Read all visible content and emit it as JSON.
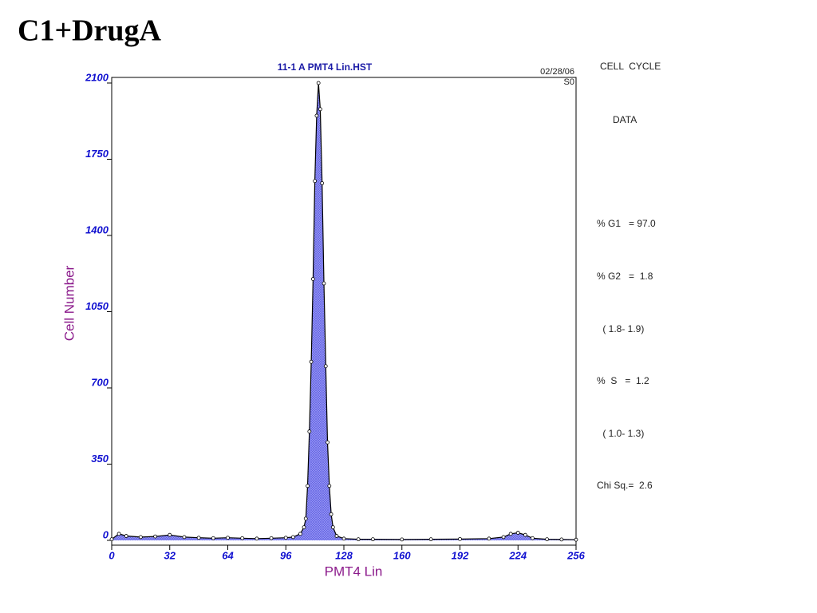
{
  "title": "C1+DrugA",
  "chart_data": {
    "type": "line",
    "title": "11-1 A PMT4 Lin.HST",
    "annotations": [
      "02/28/06",
      "S0"
    ],
    "x_label": "PMT4 Lin",
    "y_label": "Cell Number",
    "x": [
      0,
      4,
      8,
      16,
      24,
      32,
      40,
      48,
      56,
      64,
      72,
      80,
      88,
      96,
      100,
      104,
      106,
      107,
      108,
      109,
      110,
      111,
      112,
      113,
      114,
      115,
      116,
      117,
      118,
      119,
      120,
      121,
      122,
      124,
      128,
      136,
      144,
      160,
      176,
      192,
      208,
      216,
      220,
      224,
      228,
      232,
      240,
      248,
      256
    ],
    "values": [
      5,
      30,
      20,
      15,
      18,
      25,
      15,
      12,
      10,
      12,
      10,
      8,
      10,
      12,
      15,
      30,
      60,
      100,
      250,
      500,
      820,
      1200,
      1650,
      1950,
      2100,
      1980,
      1640,
      1180,
      800,
      450,
      250,
      120,
      60,
      20,
      8,
      5,
      5,
      4,
      5,
      6,
      8,
      15,
      30,
      35,
      25,
      10,
      5,
      4,
      3
    ],
    "color": "#000000",
    "fill": "#7b7bf0",
    "xlim": [
      0,
      256
    ],
    "ylim": [
      0,
      2100
    ],
    "xticks": [
      0,
      32,
      64,
      96,
      128,
      160,
      192,
      224,
      256
    ],
    "yticks": [
      0,
      350,
      700,
      1050,
      1400,
      1750,
      2100
    ]
  },
  "side_panel": [
    "CELL  CYCLE",
    "DATA",
    "% G1   = 97.0",
    "% G2   =  1.8",
    " ( 1.8- 1.9)",
    "%  S   =  1.2",
    " ( 1.0- 1.3)",
    "Chi Sq.=  2.6"
  ]
}
